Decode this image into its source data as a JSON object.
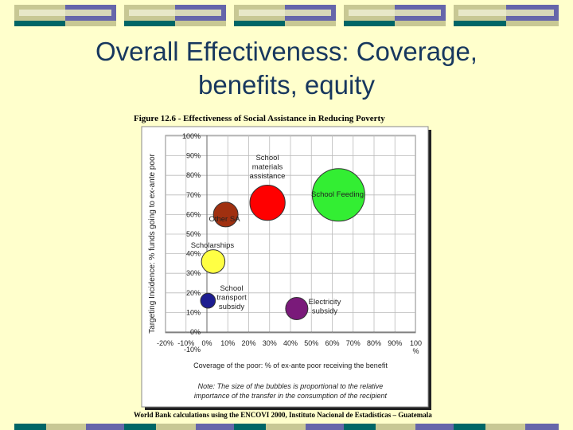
{
  "slide": {
    "title_line1": "Overall Effectiveness: Coverage,",
    "title_line2": "benefits, equity"
  },
  "figure": {
    "title": "Figure 12.6 - Effectiveness of Social Assistance in Reducing Poverty",
    "source": "World Bank calculations using the ENCOVI 2000, Instituto Nacional de Estadísticas – Guatemala",
    "note_line1": "Note: The size of the bubbles is proportional to the relative",
    "note_line2": "importance of the transfer in the consumption of the recipient"
  },
  "colors": {
    "background": "#FFFFCC",
    "deco_dark": "#006666",
    "deco_blue": "#6666AA",
    "deco_tan": "#C8C894",
    "deco_light": "#E8E8C8",
    "title_text": "#17375E"
  },
  "chart_data": {
    "type": "scatter",
    "title": "Figure 12.6 - Effectiveness of Social Assistance in Reducing Poverty",
    "xlabel": "Coverage of the poor: % of ex-ante poor receiving the benefit",
    "ylabel": "Targeting Incidence: % funds going to ex-ante poor",
    "xlim": [
      -20,
      100
    ],
    "ylim": [
      -10,
      100
    ],
    "x_ticks": [
      "-20%",
      "-10%",
      "0%",
      "10%",
      "20%",
      "30%",
      "40%",
      "50%",
      "60%",
      "70%",
      "80%",
      "90%",
      "100 %"
    ],
    "y_ticks": [
      "-10%",
      "0%",
      "10%",
      "20%",
      "30%",
      "40%",
      "50%",
      "60%",
      "70%",
      "80%",
      "90%",
      "100%"
    ],
    "grid": true,
    "bubble_size": "relative importance of the transfer in the consumption of the recipient",
    "points": [
      {
        "label": "School materials assistance",
        "x": 29,
        "y": 66,
        "size": 0.45,
        "color": "#FF0000"
      },
      {
        "label": "School Feeding",
        "x": 63,
        "y": 70,
        "size": 1.0,
        "color": "#33EE33"
      },
      {
        "label": "Other SA",
        "x": 9,
        "y": 60,
        "size": 0.22,
        "color": "#A03010"
      },
      {
        "label": "Scholarships",
        "x": 3,
        "y": 36,
        "size": 0.2,
        "color": "#FFFF44"
      },
      {
        "label": "School transport subsidy",
        "x": 0.5,
        "y": 16,
        "size": 0.08,
        "color": "#1C1C90"
      },
      {
        "label": "Electricity subsidy",
        "x": 43,
        "y": 12,
        "size": 0.18,
        "color": "#7A1A7A"
      }
    ]
  }
}
